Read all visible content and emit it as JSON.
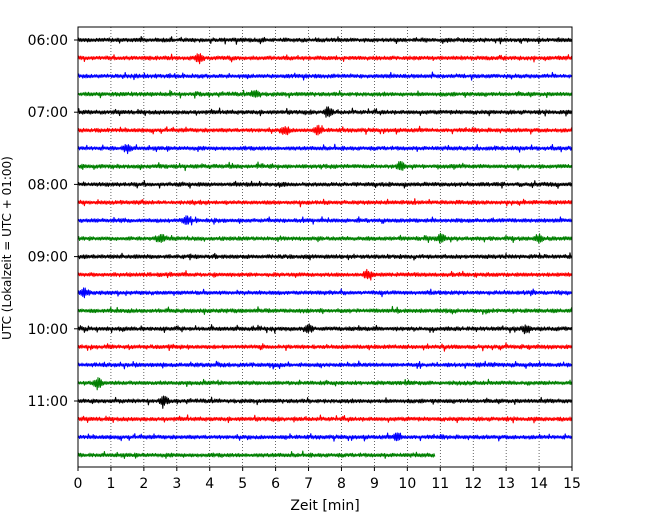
{
  "chart_data": {
    "type": "line",
    "title": "",
    "xlabel": "Zeit  [min]",
    "ylabel": "UTC (Lokalzeit = UTC + 01:00)",
    "xlim": [
      0,
      15
    ],
    "x_ticks": [
      "0",
      "1",
      "2",
      "3",
      "4",
      "5",
      "6",
      "7",
      "8",
      "9",
      "10",
      "11",
      "12",
      "13",
      "14",
      "15"
    ],
    "y_ticks": [
      {
        "label": "06:00",
        "row": 0
      },
      {
        "label": "07:00",
        "row": 4
      },
      {
        "label": "08:00",
        "row": 8
      },
      {
        "label": "09:00",
        "row": 12
      },
      {
        "label": "10:00",
        "row": 16
      },
      {
        "label": "11:00",
        "row": 20
      }
    ],
    "grid": "vertical-dotted",
    "series_colors": [
      "#000000",
      "#ff0000",
      "#0000ff",
      "#008000"
    ],
    "series": [
      {
        "start": "06:00",
        "end_min": 15,
        "color": "#000000"
      },
      {
        "start": "06:15",
        "end_min": 15,
        "color": "#ff0000",
        "events": [
          3.7
        ]
      },
      {
        "start": "06:30",
        "end_min": 15,
        "color": "#0000ff"
      },
      {
        "start": "06:45",
        "end_min": 15,
        "color": "#008000",
        "events": [
          5.4
        ]
      },
      {
        "start": "07:00",
        "end_min": 15,
        "color": "#000000",
        "events": [
          7.6
        ]
      },
      {
        "start": "07:15",
        "end_min": 15,
        "color": "#ff0000",
        "events": [
          6.3,
          7.3
        ]
      },
      {
        "start": "07:30",
        "end_min": 15,
        "color": "#0000ff",
        "events": [
          1.5
        ]
      },
      {
        "start": "07:45",
        "end_min": 15,
        "color": "#008000",
        "events": [
          9.8
        ]
      },
      {
        "start": "08:00",
        "end_min": 15,
        "color": "#000000"
      },
      {
        "start": "08:15",
        "end_min": 15,
        "color": "#ff0000"
      },
      {
        "start": "08:30",
        "end_min": 15,
        "color": "#0000ff",
        "events": [
          3.3
        ]
      },
      {
        "start": "08:45",
        "end_min": 15,
        "color": "#008000",
        "events": [
          2.5,
          11.0,
          14.0
        ]
      },
      {
        "start": "09:00",
        "end_min": 15,
        "color": "#000000"
      },
      {
        "start": "09:15",
        "end_min": 15,
        "color": "#ff0000",
        "events": [
          8.8
        ]
      },
      {
        "start": "09:30",
        "end_min": 15,
        "color": "#0000ff",
        "events": [
          0.2
        ]
      },
      {
        "start": "09:45",
        "end_min": 15,
        "color": "#008000"
      },
      {
        "start": "10:00",
        "end_min": 15,
        "color": "#000000",
        "events": [
          7.0,
          13.6
        ]
      },
      {
        "start": "10:15",
        "end_min": 15,
        "color": "#ff0000"
      },
      {
        "start": "10:30",
        "end_min": 15,
        "color": "#0000ff"
      },
      {
        "start": "10:45",
        "end_min": 15,
        "color": "#008000",
        "events": [
          0.6
        ]
      },
      {
        "start": "11:00",
        "end_min": 15,
        "color": "#000000",
        "events": [
          2.6
        ]
      },
      {
        "start": "11:15",
        "end_min": 15,
        "color": "#ff0000"
      },
      {
        "start": "11:30",
        "end_min": 15,
        "color": "#0000ff",
        "events": [
          9.7
        ]
      },
      {
        "start": "11:45",
        "end_min": 10.85,
        "color": "#008000"
      }
    ]
  }
}
